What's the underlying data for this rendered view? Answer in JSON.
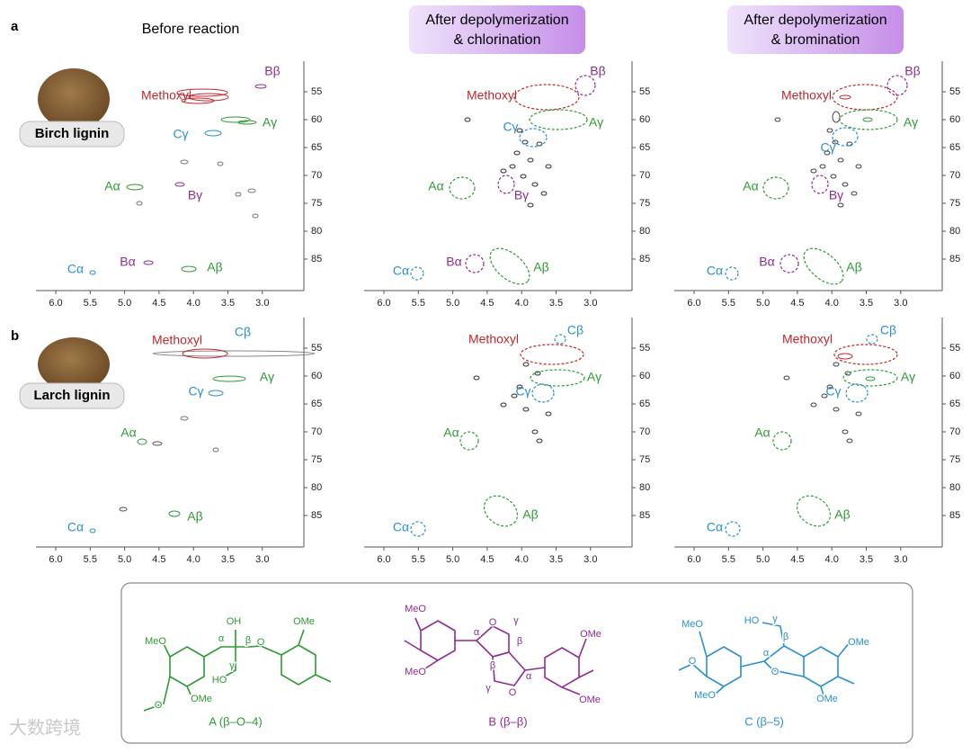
{
  "panel_labels": [
    "a",
    "b"
  ],
  "column_titles": [
    [
      "Before reaction"
    ],
    [
      "After depolymerization",
      "& chlorination"
    ],
    [
      "After depolymerization",
      "& bromination"
    ]
  ],
  "samples": [
    "Birch lignin",
    "Larch lignin"
  ],
  "xticks": [
    "6.0",
    "5.5",
    "5.0",
    "4.5",
    "4.0",
    "3.5",
    "3.0"
  ],
  "yticks": [
    "55",
    "60",
    "65",
    "70",
    "75",
    "80",
    "85"
  ],
  "panels": [
    [
      [
        "Bβ",
        "Methoxyl",
        "Aγ",
        "Cγ",
        "Aα",
        "Bγ",
        "Cα",
        "Bα",
        "Aβ"
      ],
      [
        "Bβ",
        "Methoxyl",
        "Aγ",
        "Cγ",
        "Aα",
        "Bγ",
        "Cα",
        "Bα",
        "Aβ"
      ],
      [
        "Bβ",
        "Methoxyl",
        "Aγ",
        "Cγ",
        "Aα",
        "Bγ",
        "Cα",
        "Bα",
        "Aβ"
      ]
    ],
    [
      [
        "Methoxyl",
        "Cβ",
        "Aγ",
        "Cγ",
        "Aα",
        "Cα",
        "Aβ"
      ],
      [
        "Methoxyl",
        "Cβ",
        "Aγ",
        "Cγ",
        "Aα",
        "Cα",
        "Aβ"
      ],
      [
        "Methoxyl",
        "Cβ",
        "Aγ",
        "Cγ",
        "Aα",
        "Cα",
        "Aβ"
      ]
    ]
  ],
  "structures": [
    {
      "caption": "A (β–O–4)",
      "atoms": [
        "MeO",
        "OH",
        "α",
        "β",
        "O",
        "OMe",
        "γ",
        "HO",
        "O",
        "OMe"
      ]
    },
    {
      "caption": "B (β–β)",
      "atoms": [
        "MeO",
        "O",
        "γ",
        "α",
        "β",
        "β",
        "α",
        "γ",
        "O",
        "OMe",
        "MeO",
        "OMe"
      ]
    },
    {
      "caption": "C (β–5)",
      "atoms": [
        "MeO",
        "HO",
        "γ",
        "β",
        "O",
        "α",
        "O",
        "OMe",
        "MeO",
        "OMe"
      ]
    }
  ],
  "watermark": "大数跨境"
}
